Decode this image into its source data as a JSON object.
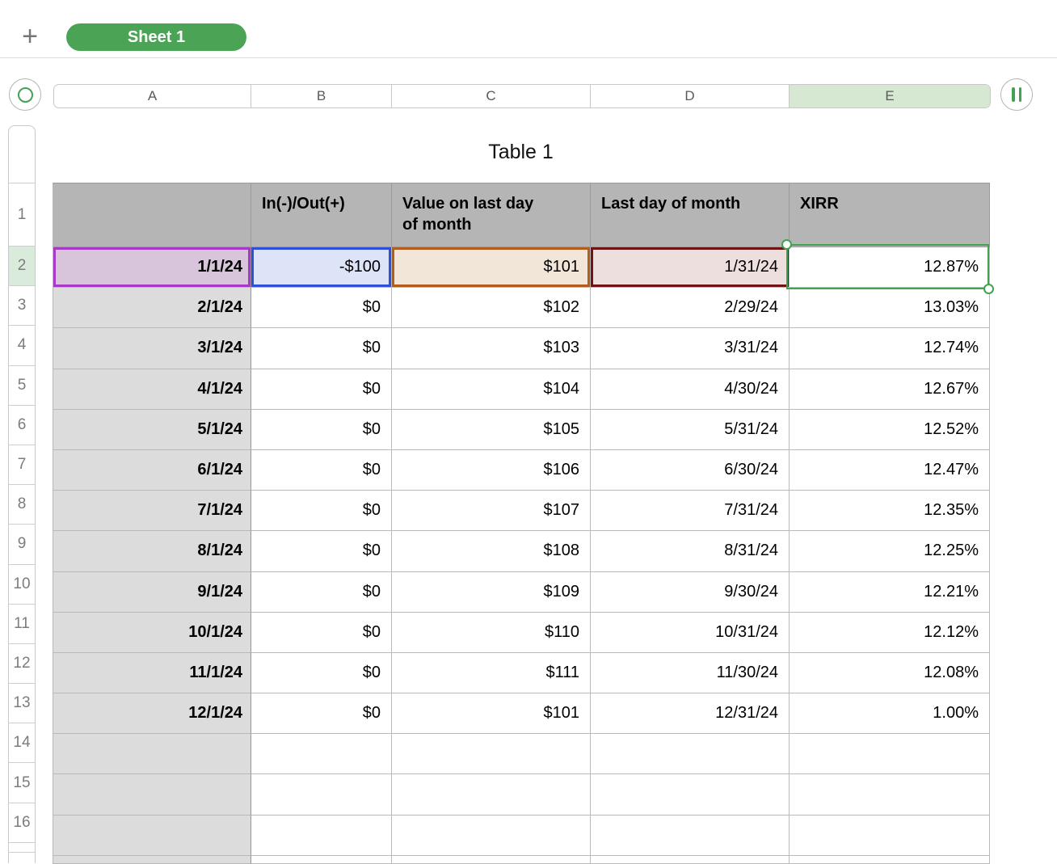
{
  "tabbar": {
    "add_label": "+",
    "sheet_name": "Sheet 1"
  },
  "columns": {
    "letters": [
      "A",
      "B",
      "C",
      "D",
      "E"
    ],
    "selected_column": "E"
  },
  "rows": {
    "numbers": [
      "1",
      "2",
      "3",
      "4",
      "5",
      "6",
      "7",
      "8",
      "9",
      "10",
      "11",
      "12",
      "13",
      "14",
      "15",
      "16"
    ],
    "selected_row": "2"
  },
  "table": {
    "title": "Table 1",
    "headers": [
      "",
      "In(-)/Out(+)",
      "Value on last day\nof month",
      "Last day of month",
      "XIRR"
    ],
    "rows": [
      [
        "1/1/24",
        "-$100",
        "$101",
        "1/31/24",
        "12.87%"
      ],
      [
        "2/1/24",
        "$0",
        "$102",
        "2/29/24",
        "13.03%"
      ],
      [
        "3/1/24",
        "$0",
        "$103",
        "3/31/24",
        "12.74%"
      ],
      [
        "4/1/24",
        "$0",
        "$104",
        "4/30/24",
        "12.67%"
      ],
      [
        "5/1/24",
        "$0",
        "$105",
        "5/31/24",
        "12.52%"
      ],
      [
        "6/1/24",
        "$0",
        "$106",
        "6/30/24",
        "12.47%"
      ],
      [
        "7/1/24",
        "$0",
        "$107",
        "7/31/24",
        "12.35%"
      ],
      [
        "8/1/24",
        "$0",
        "$108",
        "8/31/24",
        "12.25%"
      ],
      [
        "9/1/24",
        "$0",
        "$109",
        "9/30/24",
        "12.21%"
      ],
      [
        "10/1/24",
        "$0",
        "$110",
        "10/31/24",
        "12.12%"
      ],
      [
        "11/1/24",
        "$0",
        "$111",
        "11/30/24",
        "12.08%"
      ],
      [
        "12/1/24",
        "$0",
        "$101",
        "12/31/24",
        "1.00%"
      ],
      [
        "",
        "",
        "",
        "",
        ""
      ],
      [
        "",
        "",
        "",
        "",
        ""
      ],
      [
        "",
        "",
        "",
        "",
        ""
      ],
      [
        "",
        "",
        "",
        "",
        ""
      ]
    ],
    "selected_cell": "E2",
    "selected_cell_value": "12.87%"
  },
  "colors": {
    "tab_green": "#4BA456",
    "selection_green": "#41A351",
    "col_selected_bg": "#D7E8D2",
    "row_selected_bg": "#D9ECDB",
    "header_fill": "#B5B5B5",
    "acol_fill": "#DCDCDC",
    "grid_line": "#B9B9B9",
    "a2_fill": "#D8C5DC",
    "a2_border": "#A639C8",
    "b2_fill": "#DDE4F8",
    "b2_border": "#2E50D8",
    "c2_fill": "#F2E6D9",
    "c2_border": "#B25C1E",
    "d2_fill": "#EEDFDF",
    "d2_border": "#6D1415"
  }
}
